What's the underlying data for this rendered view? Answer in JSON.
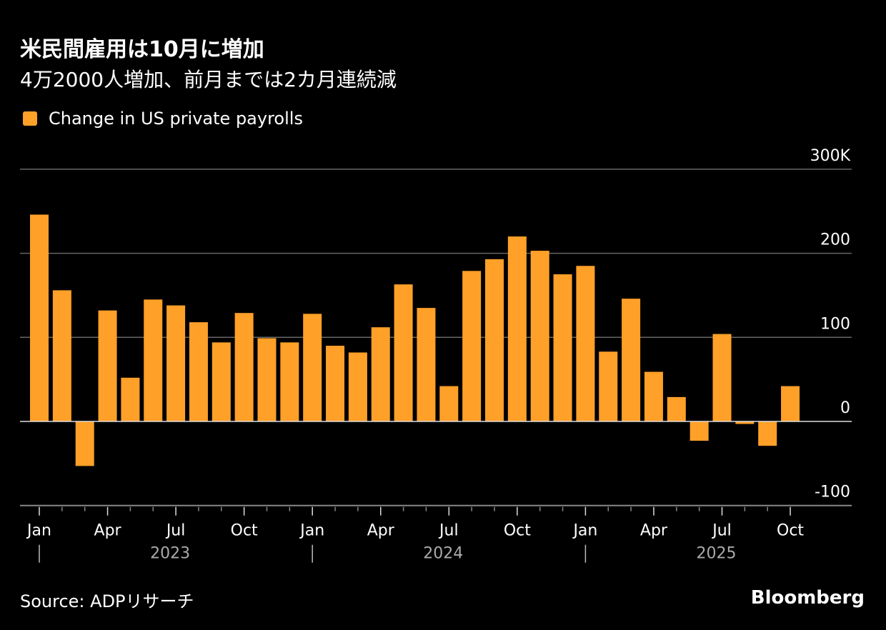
{
  "title": "米民間雇用は10月に増加",
  "subtitle": "4万2000人増加、前月までは2カ月連続減",
  "source": "Source: ADPリサーチ",
  "logo": "Bloomberg",
  "colors": {
    "bar": "#FFA028",
    "background": "#000000",
    "grid": "#666666"
  },
  "chart_data": {
    "type": "bar",
    "legend": "Change in US private payrolls",
    "legend_position": "top-left",
    "ylim": [
      -100,
      300
    ],
    "yticks": [
      {
        "value": 300,
        "label": "300K"
      },
      {
        "value": 200,
        "label": "200"
      },
      {
        "value": 100,
        "label": "100"
      },
      {
        "value": 0,
        "label": "0"
      },
      {
        "value": -100,
        "label": "-100"
      }
    ],
    "grid": true,
    "xtick_labels": [
      {
        "index": 0,
        "label": "Jan"
      },
      {
        "index": 3,
        "label": "Apr"
      },
      {
        "index": 6,
        "label": "Jul"
      },
      {
        "index": 9,
        "label": "Oct"
      },
      {
        "index": 12,
        "label": "Jan"
      },
      {
        "index": 15,
        "label": "Apr"
      },
      {
        "index": 18,
        "label": "Jul"
      },
      {
        "index": 21,
        "label": "Oct"
      },
      {
        "index": 24,
        "label": "Jan"
      },
      {
        "index": 27,
        "label": "Apr"
      },
      {
        "index": 30,
        "label": "Jul"
      },
      {
        "index": 33,
        "label": "Oct"
      }
    ],
    "year_labels": [
      {
        "start": 0,
        "label": "2023"
      },
      {
        "start": 12,
        "label": "2024"
      },
      {
        "start": 24,
        "label": "2025"
      }
    ],
    "categories": [
      "2023-01",
      "2023-02",
      "2023-03",
      "2023-04",
      "2023-05",
      "2023-06",
      "2023-07",
      "2023-08",
      "2023-09",
      "2023-10",
      "2023-11",
      "2023-12",
      "2024-01",
      "2024-02",
      "2024-03",
      "2024-04",
      "2024-05",
      "2024-06",
      "2024-07",
      "2024-08",
      "2024-09",
      "2024-10",
      "2024-11",
      "2024-12",
      "2025-01",
      "2025-02",
      "2025-03",
      "2025-04",
      "2025-05",
      "2025-06",
      "2025-07",
      "2025-08",
      "2025-09",
      "2025-10"
    ],
    "values": [
      246,
      156,
      -53,
      132,
      52,
      145,
      138,
      118,
      94,
      129,
      99,
      94,
      128,
      90,
      82,
      112,
      163,
      135,
      42,
      179,
      193,
      220,
      203,
      175,
      185,
      83,
      146,
      59,
      29,
      -23,
      104,
      -3,
      -29,
      42
    ]
  }
}
